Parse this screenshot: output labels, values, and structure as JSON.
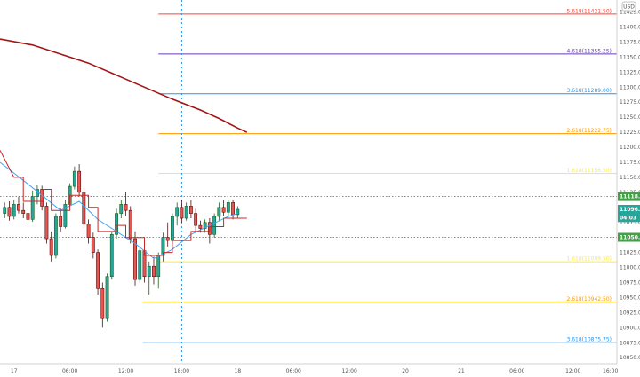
{
  "chart_data": {
    "type": "candlestick",
    "currency": "USD",
    "colors": {
      "up": "#26a69a",
      "up_border": "#1b5e20",
      "down": "#ef5350",
      "down_border": "#4a1410",
      "ma_long": "#a31515",
      "ma_fast": "#42a5f5",
      "trail": "#c62828",
      "level_line": "#43a047",
      "crosshair": "#2196f3"
    },
    "ylim": [
      10840,
      11445
    ],
    "y_ticks": [
      11425.0,
      11400.0,
      11375.0,
      11350.0,
      11325.0,
      11300.0,
      11275.0,
      11250.0,
      11225.0,
      11200.0,
      11175.0,
      11150.0,
      11125.0,
      11100.0,
      11075.0,
      11050.0,
      11025.0,
      11000.0,
      10975.0,
      10950.0,
      10925.0,
      10900.0,
      10875.0,
      10850.0
    ],
    "x_ticks": [
      {
        "label": "17",
        "t": 0
      },
      {
        "label": "06:00",
        "t": 6
      },
      {
        "label": "12:00",
        "t": 12
      },
      {
        "label": "18:00",
        "t": 18
      },
      {
        "label": "18",
        "t": 24
      },
      {
        "label": "06:00",
        "t": 30
      },
      {
        "label": "12:00",
        "t": 36
      },
      {
        "label": "20",
        "t": 42
      },
      {
        "label": "21",
        "t": 48
      },
      {
        "label": "06:00",
        "t": 54
      },
      {
        "label": "12:00",
        "t": 60
      },
      {
        "label": "16:00",
        "t": 64
      }
    ],
    "xlim": [
      -1.5,
      64.7
    ],
    "crosshair_t": 18,
    "fib_levels": [
      {
        "label": "5.618(11421.50)",
        "price": 11421.5,
        "color": "#f44336",
        "t_start": 15.5
      },
      {
        "label": "4.618(11355.25)",
        "price": 11355.25,
        "color": "#673ab7",
        "t_start": 15.5
      },
      {
        "label": "3.618(11289.00)",
        "price": 11289.0,
        "color": "#2196f3",
        "t_start": 15.5
      },
      {
        "label": "2.618(11222.75)",
        "price": 11222.75,
        "color": "#ff9800",
        "t_start": 15.5
      },
      {
        "label": "1.618(11156.50)",
        "price": 11156.5,
        "color": "#ffeb3b",
        "t_start": 15.5
      },
      {
        "label": "1.618(11009.50)",
        "price": 11009.5,
        "color": "#ffeb3b",
        "t_start": 15.5
      },
      {
        "label": "2.618(10942.50)",
        "price": 10942.5,
        "color": "#ff9800",
        "t_start": 13.8
      },
      {
        "label": "3.618(10875.75)",
        "price": 10875.75,
        "color": "#2196f3",
        "t_start": 13.8
      }
    ],
    "hlines": [
      {
        "price": 11118.0,
        "label": "11118.00"
      },
      {
        "price": 11050.25,
        "label": "11050.25"
      }
    ],
    "badges": [
      {
        "price": 11118.0,
        "label": "11118.00",
        "color": "#43a047"
      },
      {
        "price": 11096.75,
        "label": "11096.75",
        "color": "#26a69a"
      },
      {
        "price": 11083.0,
        "label": "04:03",
        "color": "#26a69a"
      },
      {
        "price": 11050.25,
        "label": "11050.25",
        "color": "#43a047"
      }
    ],
    "candles": [
      {
        "t": -1.0,
        "o": 11090,
        "h": 11108,
        "l": 11082,
        "c": 11100
      },
      {
        "t": -0.5,
        "o": 11100,
        "h": 11110,
        "l": 11078,
        "c": 11085
      },
      {
        "t": 0.0,
        "o": 11085,
        "h": 11112,
        "l": 11080,
        "c": 11105
      },
      {
        "t": 0.5,
        "o": 11105,
        "h": 11118,
        "l": 11090,
        "c": 11095
      },
      {
        "t": 1.0,
        "o": 11095,
        "h": 11108,
        "l": 11082,
        "c": 11090
      },
      {
        "t": 1.5,
        "o": 11090,
        "h": 11102,
        "l": 11070,
        "c": 11080
      },
      {
        "t": 2.0,
        "o": 11080,
        "h": 11128,
        "l": 11076,
        "c": 11118
      },
      {
        "t": 2.5,
        "o": 11118,
        "h": 11138,
        "l": 11105,
        "c": 11130
      },
      {
        "t": 3.0,
        "o": 11130,
        "h": 11136,
        "l": 11095,
        "c": 11102
      },
      {
        "t": 3.5,
        "o": 11102,
        "h": 11108,
        "l": 11040,
        "c": 11048
      },
      {
        "t": 4.0,
        "o": 11048,
        "h": 11060,
        "l": 11010,
        "c": 11020
      },
      {
        "t": 4.5,
        "o": 11020,
        "h": 11090,
        "l": 11015,
        "c": 11085
      },
      {
        "t": 5.0,
        "o": 11085,
        "h": 11098,
        "l": 11060,
        "c": 11068
      },
      {
        "t": 5.5,
        "o": 11068,
        "h": 11112,
        "l": 11065,
        "c": 11105
      },
      {
        "t": 6.0,
        "o": 11105,
        "h": 11140,
        "l": 11100,
        "c": 11135
      },
      {
        "t": 6.5,
        "o": 11135,
        "h": 11168,
        "l": 11130,
        "c": 11160
      },
      {
        "t": 7.0,
        "o": 11160,
        "h": 11172,
        "l": 11118,
        "c": 11125
      },
      {
        "t": 7.5,
        "o": 11125,
        "h": 11132,
        "l": 11065,
        "c": 11072
      },
      {
        "t": 8.0,
        "o": 11072,
        "h": 11080,
        "l": 11040,
        "c": 11050
      },
      {
        "t": 8.5,
        "o": 11050,
        "h": 11058,
        "l": 11015,
        "c": 11025
      },
      {
        "t": 9.0,
        "o": 11025,
        "h": 11030,
        "l": 10955,
        "c": 10965
      },
      {
        "t": 9.5,
        "o": 10965,
        "h": 10975,
        "l": 10900,
        "c": 10915
      },
      {
        "t": 10.0,
        "o": 10915,
        "h": 10990,
        "l": 10910,
        "c": 10985
      },
      {
        "t": 10.5,
        "o": 10985,
        "h": 11060,
        "l": 10980,
        "c": 11055
      },
      {
        "t": 11.0,
        "o": 11055,
        "h": 11098,
        "l": 11048,
        "c": 11090
      },
      {
        "t": 11.5,
        "o": 11090,
        "h": 11112,
        "l": 11082,
        "c": 11105
      },
      {
        "t": 12.0,
        "o": 11105,
        "h": 11125,
        "l": 11085,
        "c": 11095
      },
      {
        "t": 12.5,
        "o": 11095,
        "h": 11102,
        "l": 11040,
        "c": 11048
      },
      {
        "t": 13.0,
        "o": 11048,
        "h": 11060,
        "l": 10970,
        "c": 10980
      },
      {
        "t": 13.5,
        "o": 10980,
        "h": 11035,
        "l": 10975,
        "c": 11028
      },
      {
        "t": 14.0,
        "o": 11028,
        "h": 11032,
        "l": 10975,
        "c": 10985
      },
      {
        "t": 14.5,
        "o": 10985,
        "h": 11010,
        "l": 10955,
        "c": 11002
      },
      {
        "t": 15.0,
        "o": 11002,
        "h": 11018,
        "l": 10972,
        "c": 10985
      },
      {
        "t": 15.5,
        "o": 10985,
        "h": 11025,
        "l": 10965,
        "c": 11020
      },
      {
        "t": 16.0,
        "o": 11020,
        "h": 11058,
        "l": 11010,
        "c": 11050
      },
      {
        "t": 16.5,
        "o": 11050,
        "h": 11075,
        "l": 11035,
        "c": 11045
      },
      {
        "t": 17.0,
        "o": 11045,
        "h": 11090,
        "l": 11040,
        "c": 11085
      },
      {
        "t": 17.5,
        "o": 11085,
        "h": 11108,
        "l": 11070,
        "c": 11100
      },
      {
        "t": 18.0,
        "o": 11100,
        "h": 11112,
        "l": 11075,
        "c": 11082
      },
      {
        "t": 18.5,
        "o": 11082,
        "h": 11108,
        "l": 11078,
        "c": 11102
      },
      {
        "t": 19.0,
        "o": 11102,
        "h": 11112,
        "l": 11082,
        "c": 11090
      },
      {
        "t": 19.5,
        "o": 11090,
        "h": 11098,
        "l": 11060,
        "c": 11070
      },
      {
        "t": 20.0,
        "o": 11070,
        "h": 11078,
        "l": 11058,
        "c": 11065
      },
      {
        "t": 20.5,
        "o": 11065,
        "h": 11080,
        "l": 11058,
        "c": 11075
      },
      {
        "t": 21.0,
        "o": 11075,
        "h": 11082,
        "l": 11040,
        "c": 11055
      },
      {
        "t": 21.5,
        "o": 11055,
        "h": 11090,
        "l": 11050,
        "c": 11085
      },
      {
        "t": 22.0,
        "o": 11085,
        "h": 11108,
        "l": 11078,
        "c": 11100
      },
      {
        "t": 22.5,
        "o": 11100,
        "h": 11112,
        "l": 11085,
        "c": 11092
      },
      {
        "t": 23.0,
        "o": 11092,
        "h": 11112,
        "l": 11085,
        "c": 11108
      },
      {
        "t": 23.5,
        "o": 11108,
        "h": 11112,
        "l": 11080,
        "c": 11088
      },
      {
        "t": 24.0,
        "o": 11088,
        "h": 11102,
        "l": 11082,
        "c": 11096.75
      }
    ],
    "ma_long": [
      [
        -1.5,
        11380
      ],
      [
        2,
        11370
      ],
      [
        5,
        11355
      ],
      [
        8,
        11340
      ],
      [
        11,
        11320
      ],
      [
        14,
        11300
      ],
      [
        17,
        11280
      ],
      [
        20,
        11262
      ],
      [
        22,
        11248
      ],
      [
        24,
        11232
      ],
      [
        25,
        11225
      ]
    ],
    "ma_fast": [
      [
        -1.5,
        11175
      ],
      [
        1,
        11145
      ],
      [
        3,
        11120
      ],
      [
        5,
        11095
      ],
      [
        7,
        11110
      ],
      [
        9,
        11080
      ],
      [
        11,
        11060
      ],
      [
        13,
        11040
      ],
      [
        15,
        11015
      ],
      [
        17,
        11030
      ],
      [
        19,
        11055
      ],
      [
        21,
        11070
      ],
      [
        23,
        11085
      ],
      [
        24,
        11090
      ]
    ],
    "trail": [
      [
        -1.5,
        11195
      ],
      [
        0,
        11150
      ],
      [
        1,
        11150
      ],
      [
        1,
        11110
      ],
      [
        3.2,
        11110
      ],
      [
        3.2,
        11130
      ],
      [
        4,
        11130
      ],
      [
        4,
        11095
      ],
      [
        6,
        11095
      ],
      [
        6,
        11120
      ],
      [
        8,
        11120
      ],
      [
        8,
        11100
      ],
      [
        9,
        11100
      ],
      [
        9,
        11060
      ],
      [
        11,
        11060
      ],
      [
        11,
        11070
      ],
      [
        12,
        11070
      ],
      [
        12,
        11050
      ],
      [
        14,
        11050
      ],
      [
        14,
        11020
      ],
      [
        16,
        11020
      ],
      [
        16,
        11025
      ],
      [
        17,
        11025
      ],
      [
        17,
        11045
      ],
      [
        19,
        11045
      ],
      [
        19,
        11060
      ],
      [
        21,
        11060
      ],
      [
        21,
        11068
      ],
      [
        22.5,
        11068
      ],
      [
        22.5,
        11082
      ],
      [
        25,
        11082
      ]
    ]
  }
}
